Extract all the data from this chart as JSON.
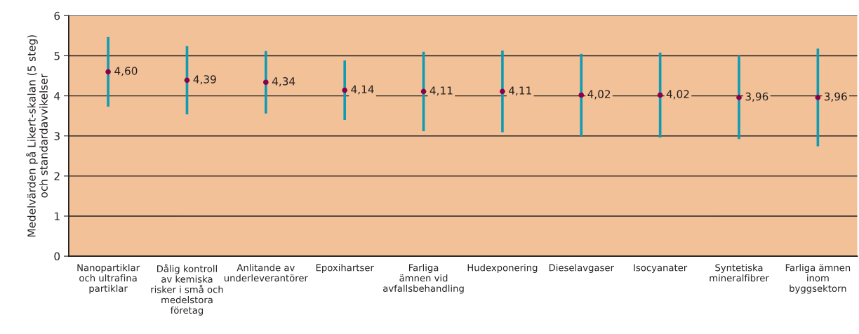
{
  "chart_data": {
    "type": "scatter",
    "ylabel": "Medelvärden på Likert-skalan (5 steg)\noch standardavvikelser",
    "categories": [
      "Nanopartiklar\noch ultrafina\npartiklar",
      "Dålig kontroll\nav kemiska\nrisker i små och\nmedelstora\nföretag",
      "Anlitande av\nunderleverantörer",
      "Epoxihartser",
      "Farliga\nämnen vid\navfallsbehandling",
      "Hudexponering",
      "Dieselavgaser",
      "Isocyanater",
      "Syntetiska\nmineralfibrer",
      "Farliga ämnen\ninom\nbyggsektorn"
    ],
    "series": [
      {
        "color": "#8b0046",
        "values": [
          4.6,
          4.39,
          4.34,
          4.14,
          4.11,
          4.11,
          4.02,
          4.02,
          3.96,
          3.96
        ],
        "errors": [
          0.87,
          0.85,
          0.78,
          0.74,
          0.99,
          1.02,
          1.03,
          1.06,
          1.04,
          1.22
        ],
        "value_labels": [
          "4,60",
          "4,39",
          "4,34",
          "4,14",
          "4,11",
          "4,11",
          "4,02",
          "4,02",
          "3,96",
          "3,96"
        ]
      }
    ],
    "ylim": [
      0,
      6
    ],
    "yticks": [
      0,
      1,
      2,
      3,
      4,
      5,
      6
    ],
    "grid": "y",
    "marker": "circle",
    "legend": false
  }
}
